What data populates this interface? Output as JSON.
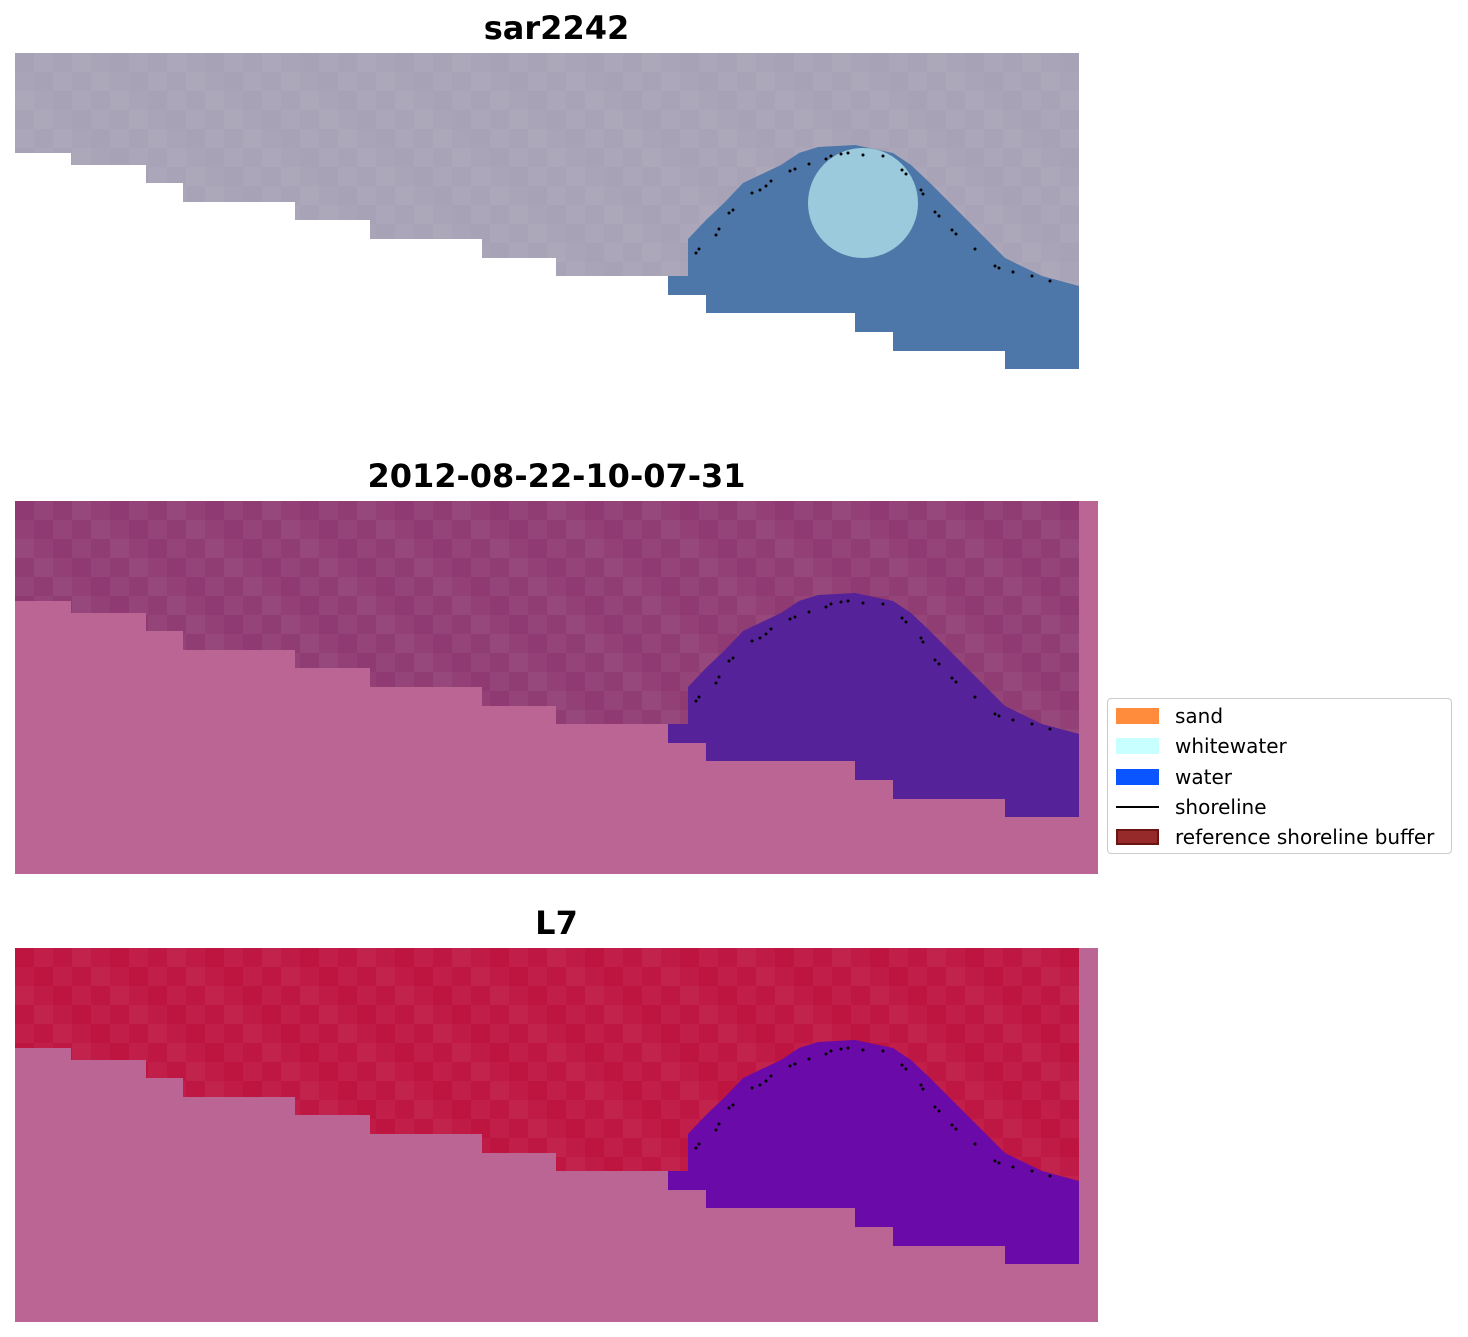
{
  "panels": [
    {
      "id": "sar",
      "title": "sar2242"
    },
    {
      "id": "classified",
      "title": "2012-08-22-10-07-31"
    },
    {
      "id": "index",
      "title": "L7"
    }
  ],
  "legend": {
    "items": [
      {
        "label": "sand",
        "color": "#ff8c3c",
        "kind": "patch"
      },
      {
        "label": "whitewater",
        "color": "#c8ffff",
        "kind": "patch"
      },
      {
        "label": "water",
        "color": "#0a55ff",
        "kind": "patch"
      },
      {
        "label": "shoreline",
        "color": "#000000",
        "kind": "line"
      },
      {
        "label": "reference shoreline buffer",
        "color": "#962a2a",
        "kind": "patch",
        "edge": "#6a1414"
      }
    ]
  },
  "colors": {
    "sar_land": "#a7a2b6",
    "sar_water": "#4d77a8",
    "sar_whitewater": "#a8d8e4",
    "classified_background": "#bb6595",
    "classified_land": "#8f3a72",
    "classified_water": "#56229a",
    "index_background": "#bb6595",
    "index_land": "#be1440",
    "index_water": "#6a0aa8",
    "shoreline_dots": "#000000"
  }
}
